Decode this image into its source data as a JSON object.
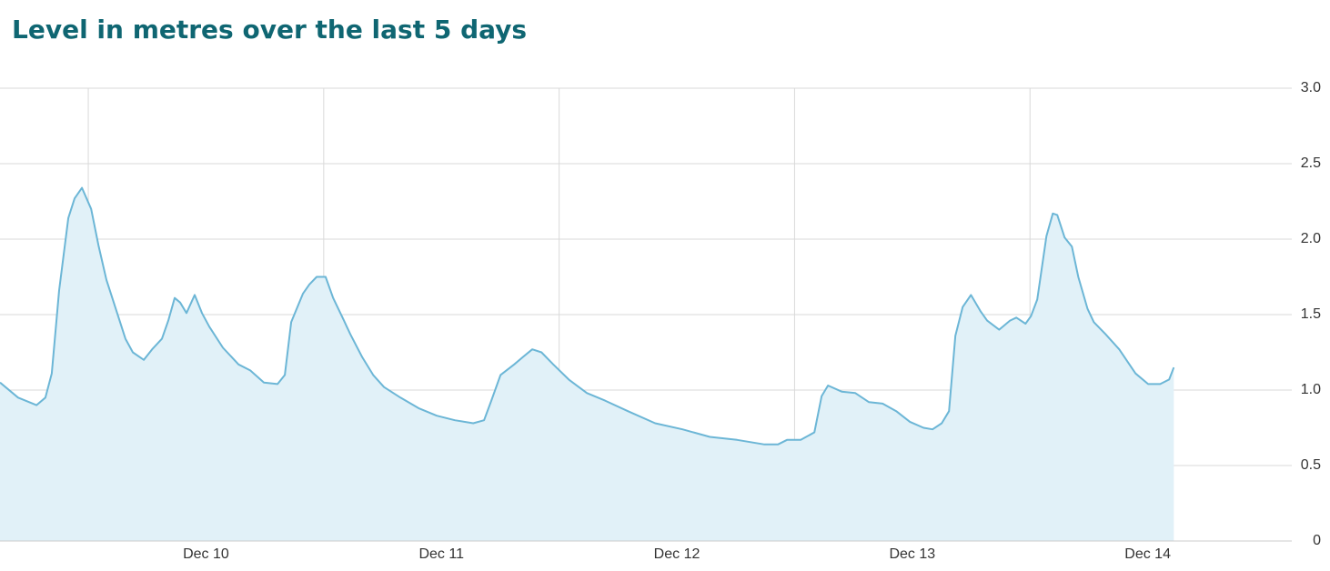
{
  "chart_data": {
    "type": "area",
    "title": "Level in metres over the last 5 days",
    "x": [
      9.625,
      9.702,
      9.78,
      9.818,
      9.845,
      9.876,
      9.915,
      9.942,
      9.973,
      10.012,
      10.043,
      10.077,
      10.104,
      10.158,
      10.189,
      10.236,
      10.271,
      10.313,
      10.34,
      10.367,
      10.39,
      10.417,
      10.452,
      10.483,
      10.514,
      10.572,
      10.638,
      10.688,
      10.746,
      10.804,
      10.835,
      10.862,
      10.912,
      10.939,
      10.97,
      11.008,
      11.04,
      11.086,
      11.113,
      11.163,
      11.21,
      11.256,
      11.326,
      11.403,
      11.48,
      11.557,
      11.635,
      11.681,
      11.712,
      11.751,
      11.809,
      11.847,
      11.886,
      11.925,
      11.975,
      12.041,
      12.118,
      12.195,
      12.292,
      12.408,
      12.524,
      12.64,
      12.756,
      12.872,
      12.929,
      12.968,
      13.026,
      13.084,
      13.115,
      13.142,
      13.2,
      13.258,
      13.316,
      13.374,
      13.432,
      13.49,
      13.548,
      13.586,
      13.625,
      13.656,
      13.683,
      13.714,
      13.749,
      13.791,
      13.818,
      13.869,
      13.915,
      13.942,
      13.981,
      14.004,
      14.031,
      14.07,
      14.097,
      14.116,
      14.147,
      14.178,
      14.205,
      14.244,
      14.271,
      14.321,
      14.379,
      14.448,
      14.502,
      14.553,
      14.591,
      14.611
    ],
    "series": [
      {
        "color": "#6cb6d6",
        "fill": "#e1f1f8",
        "values": [
          1.05,
          0.95,
          0.9,
          0.95,
          1.11,
          1.66,
          2.14,
          2.27,
          2.34,
          2.2,
          1.96,
          1.73,
          1.6,
          1.34,
          1.25,
          1.2,
          1.27,
          1.34,
          1.46,
          1.61,
          1.58,
          1.51,
          1.63,
          1.51,
          1.42,
          1.28,
          1.17,
          1.13,
          1.05,
          1.04,
          1.1,
          1.45,
          1.64,
          1.7,
          1.75,
          1.75,
          1.61,
          1.46,
          1.37,
          1.22,
          1.1,
          1.02,
          0.95,
          0.88,
          0.83,
          0.8,
          0.78,
          0.8,
          0.93,
          1.1,
          1.17,
          1.22,
          1.27,
          1.25,
          1.17,
          1.07,
          0.98,
          0.93,
          0.86,
          0.78,
          0.74,
          0.69,
          0.67,
          0.64,
          0.64,
          0.67,
          0.67,
          0.72,
          0.96,
          1.03,
          0.99,
          0.98,
          0.92,
          0.91,
          0.86,
          0.79,
          0.75,
          0.74,
          0.78,
          0.86,
          1.36,
          1.55,
          1.63,
          1.52,
          1.46,
          1.4,
          1.46,
          1.48,
          1.44,
          1.49,
          1.6,
          2.02,
          2.17,
          2.16,
          2.01,
          1.95,
          1.75,
          1.54,
          1.45,
          1.37,
          1.27,
          1.11,
          1.04,
          1.04,
          1.07,
          1.15
        ]
      }
    ],
    "xlim": [
      9.625,
      15.112
    ],
    "xticks": [
      {
        "value": 10,
        "label": "Dec 10"
      },
      {
        "value": 11,
        "label": "Dec 11"
      },
      {
        "value": 12,
        "label": "Dec 12"
      },
      {
        "value": 13,
        "label": "Dec 13"
      },
      {
        "value": 14,
        "label": "Dec 14"
      }
    ],
    "ylim": [
      0,
      3
    ],
    "yticks": [
      0,
      0.5,
      {
        "value": 1,
        "label": "1.0"
      },
      1.5,
      {
        "value": 2,
        "label": "2.0"
      },
      2.5,
      {
        "value": 3,
        "label": "3.0"
      }
    ],
    "grid": true
  }
}
